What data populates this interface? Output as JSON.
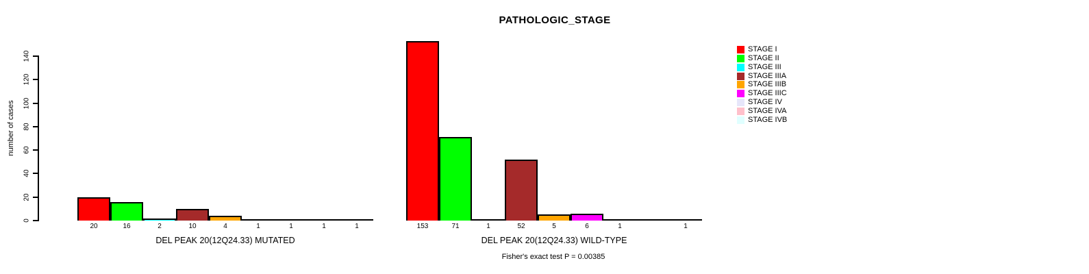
{
  "title": "PATHOLOGIC_STAGE",
  "ylabel": "number of cases",
  "footer": "Fisher's exact test P = 0.00385",
  "legend": {
    "position": "right",
    "items": [
      {
        "label": "STAGE I",
        "color": "#FF0000"
      },
      {
        "label": "STAGE II",
        "color": "#00FF00"
      },
      {
        "label": "STAGE III",
        "color": "#00FFFF"
      },
      {
        "label": "STAGE IIIA",
        "color": "#A52A2A"
      },
      {
        "label": "STAGE IIIB",
        "color": "#FFA500"
      },
      {
        "label": "STAGE IIIC",
        "color": "#FF00FF"
      },
      {
        "label": "STAGE IV",
        "color": "#E6E6FA"
      },
      {
        "label": "STAGE IVA",
        "color": "#FFC0CB"
      },
      {
        "label": "STAGE IVB",
        "color": "#E0FFFF"
      }
    ]
  },
  "chart_data": {
    "type": "bar",
    "title": "PATHOLOGIC_STAGE",
    "ylabel": "number of cases",
    "categories": [
      "STAGE I",
      "STAGE II",
      "STAGE III",
      "STAGE IIIA",
      "STAGE IIIB",
      "STAGE IIIC",
      "STAGE IV",
      "STAGE IVA",
      "STAGE IVB"
    ],
    "palette": [
      "#FF0000",
      "#00FF00",
      "#00FFFF",
      "#A52A2A",
      "#FFA500",
      "#FF00FF",
      "#E6E6FA",
      "#FFC0CB",
      "#E0FFFF"
    ],
    "groups": [
      {
        "label": "DEL PEAK 20(12Q24.33) MUTATED",
        "values": [
          20,
          16,
          2,
          10,
          4,
          1,
          1,
          1,
          1
        ],
        "value_labels": [
          "20",
          "16",
          "2",
          "10",
          "4",
          "1",
          "1",
          "1",
          "1"
        ]
      },
      {
        "label": "DEL PEAK 20(12Q24.33) WILD-TYPE",
        "values": [
          153,
          71,
          1,
          52,
          5,
          6,
          1,
          0,
          1
        ],
        "value_labels": [
          "153",
          "71",
          "1",
          "52",
          "5",
          "6",
          "1",
          "",
          "1"
        ]
      }
    ],
    "yticks": [
      0,
      20,
      40,
      60,
      80,
      100,
      120,
      140
    ],
    "ylim": [
      0,
      140
    ],
    "grid": false,
    "legend_position": "right",
    "annotation": "Fisher's exact test P = 0.00385"
  }
}
